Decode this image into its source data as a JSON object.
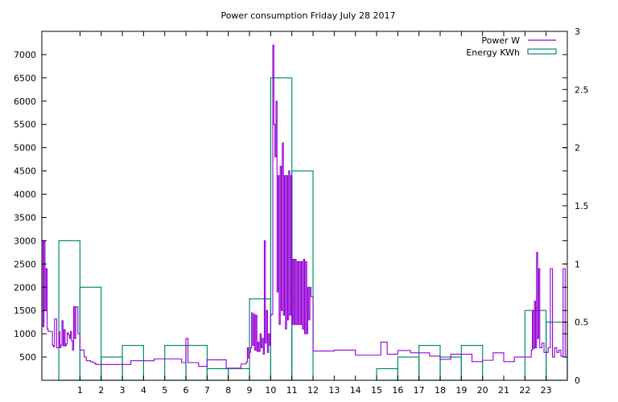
{
  "colors": {
    "power": "#9400d3",
    "energy": "#008b73",
    "axis": "#000000",
    "background": "#ffffff"
  },
  "chart_data": {
    "type": "line",
    "title": "Power consumption Friday July 28 2017",
    "xlabel": "",
    "ylabel": "",
    "y2label": "",
    "xlim": [
      -0.8,
      24
    ],
    "ylim": [
      0,
      7500
    ],
    "y2lim": [
      0,
      3
    ],
    "grid": false,
    "legend_position": "top-right",
    "x_ticks": [
      1,
      2,
      3,
      4,
      5,
      6,
      7,
      8,
      9,
      10,
      11,
      12,
      13,
      14,
      15,
      16,
      17,
      18,
      19,
      20,
      21,
      22,
      23
    ],
    "y_ticks": [
      500,
      1000,
      1500,
      2000,
      2500,
      3000,
      3500,
      4000,
      4500,
      5000,
      5500,
      6000,
      6500,
      7000
    ],
    "y2_ticks": [
      {
        "value": 0,
        "label": "0"
      },
      {
        "value": 0.5,
        "label": "0.5"
      },
      {
        "value": 1,
        "label": "1"
      },
      {
        "value": 1.5,
        "label": "1.5"
      },
      {
        "value": 2,
        "label": "2"
      },
      {
        "value": 2.5,
        "label": "2.5"
      },
      {
        "value": 3,
        "label": "3"
      }
    ],
    "series": [
      {
        "name": "Power W",
        "axis": "y",
        "style": "steps",
        "x": [
          -0.8,
          -0.75,
          -0.7,
          -0.65,
          -0.6,
          -0.55,
          -0.5,
          -0.4,
          -0.3,
          -0.25,
          -0.2,
          -0.1,
          0,
          0.05,
          0.1,
          0.15,
          0.2,
          0.25,
          0.3,
          0.35,
          0.4,
          0.45,
          0.5,
          0.55,
          0.6,
          0.65,
          0.7,
          0.75,
          0.8,
          0.9,
          1.0,
          1.1,
          1.2,
          1.3,
          1.35,
          1.4,
          1.45,
          1.5,
          1.55,
          1.6,
          1.65,
          1.7,
          1.75,
          1.8,
          1.9,
          2.2,
          2.5,
          3.0,
          3.4,
          3.6,
          4.0,
          4.5,
          5.0,
          5.8,
          5.9,
          6.0,
          6.1,
          6.4,
          6.6,
          6.9,
          7.0,
          7.7,
          7.9,
          8.2,
          8.4,
          8.6,
          8.8,
          8.85,
          8.9,
          8.95,
          9.0,
          9.05,
          9.1,
          9.15,
          9.2,
          9.25,
          9.3,
          9.35,
          9.4,
          9.45,
          9.5,
          9.55,
          9.6,
          9.65,
          9.7,
          9.75,
          9.8,
          9.85,
          9.9,
          9.95,
          10.0,
          10.05,
          10.1,
          10.15,
          10.2,
          10.25,
          10.3,
          10.35,
          10.4,
          10.45,
          10.5,
          10.55,
          10.6,
          10.65,
          10.7,
          10.75,
          10.8,
          10.85,
          10.9,
          10.95,
          11.0,
          11.05,
          11.1,
          11.15,
          11.2,
          11.25,
          11.3,
          11.35,
          11.4,
          11.45,
          11.5,
          11.55,
          11.6,
          11.65,
          11.7,
          11.75,
          11.8,
          11.85,
          11.9,
          12.0,
          12.5,
          13.0,
          13.5,
          14.0,
          14.5,
          14.9,
          15.0,
          15.2,
          15.5,
          16.0,
          16.3,
          16.6,
          17.0,
          17.5,
          18.0,
          18.5,
          19.0,
          19.2,
          19.5,
          19.9,
          20.0,
          20.5,
          21.0,
          21.5,
          21.9,
          22.0,
          22.1,
          22.2,
          22.3,
          22.35,
          22.4,
          22.45,
          22.5,
          22.55,
          22.6,
          22.65,
          22.7,
          22.8,
          22.9,
          23.0,
          23.1,
          23.2,
          23.3,
          23.4,
          23.5,
          23.6,
          23.7,
          23.8,
          23.9,
          24.0
        ],
        "y": [
          3000,
          1150,
          3000,
          1500,
          2400,
          1100,
          1050,
          1050,
          750,
          720,
          1320,
          700,
          1040,
          700,
          760,
          1280,
          740,
          1090,
          740,
          780,
          1020,
          980,
          900,
          1050,
          850,
          650,
          1580,
          900,
          1580,
          1000,
          650,
          650,
          500,
          420,
          420,
          420,
          420,
          400,
          400,
          380,
          380,
          360,
          340,
          340,
          340,
          340,
          340,
          340,
          420,
          420,
          420,
          460,
          460,
          380,
          380,
          900,
          380,
          380,
          300,
          300,
          440,
          440,
          260,
          260,
          260,
          350,
          350,
          390,
          700,
          480,
          600,
          700,
          1450,
          750,
          1420,
          650,
          1400,
          620,
          820,
          620,
          1000,
          700,
          900,
          560,
          3000,
          800,
          1500,
          600,
          1000,
          750,
          1400,
          1420,
          7200,
          5500,
          4800,
          6000,
          1900,
          4400,
          1200,
          4600,
          1500,
          5100,
          1400,
          4400,
          1100,
          4400,
          1300,
          4500,
          1400,
          4400,
          1200,
          2600,
          1200,
          2600,
          1200,
          2550,
          1200,
          2550,
          1200,
          2550,
          1100,
          2600,
          1000,
          2550,
          1000,
          2000,
          1300,
          2000,
          1800,
          630,
          630,
          650,
          650,
          540,
          540,
          540,
          540,
          820,
          560,
          640,
          640,
          590,
          590,
          520,
          450,
          560,
          560,
          560,
          400,
          400,
          430,
          590,
          400,
          500,
          500,
          500,
          500,
          500,
          650,
          1500,
          680,
          1700,
          700,
          2750,
          900,
          2400,
          700,
          800,
          600,
          600,
          700,
          2400,
          500,
          700,
          600,
          650,
          520,
          2400,
          500,
          650
        ]
      },
      {
        "name": "Energy KWh",
        "axis": "y2",
        "style": "boxes",
        "x": [
          0,
          1,
          2,
          3,
          4,
          5,
          6,
          7,
          8,
          9,
          10,
          11,
          12,
          13,
          14,
          15,
          16,
          17,
          18,
          19,
          20,
          21,
          22,
          23
        ],
        "y": [
          1.2,
          0.8,
          0.2,
          0.3,
          0,
          0.3,
          0.3,
          0.1,
          0.1,
          0.7,
          2.6,
          1.8,
          0,
          0,
          0,
          0.1,
          0.2,
          0.3,
          0.2,
          0.3,
          0,
          0,
          0.6,
          0.5
        ]
      }
    ]
  }
}
